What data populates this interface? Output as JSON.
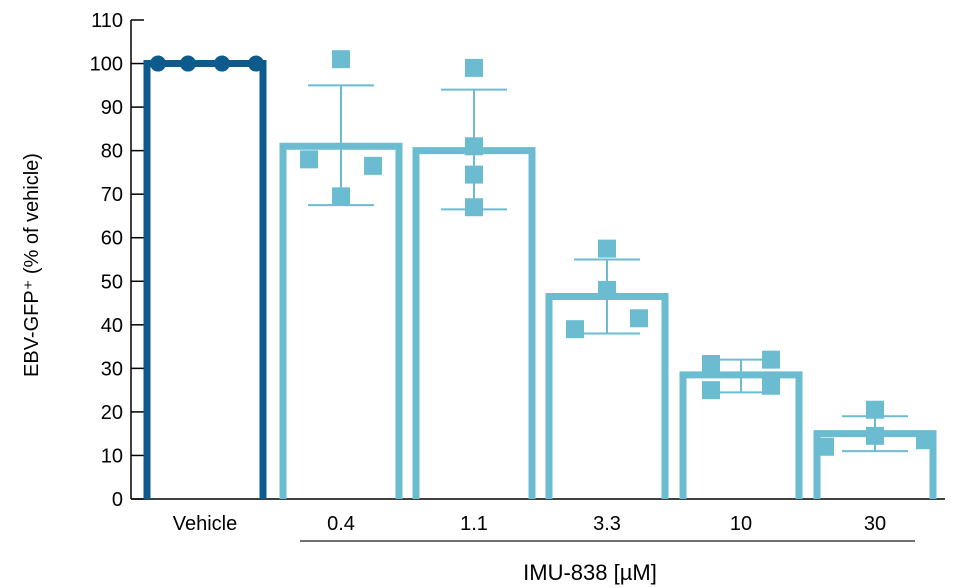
{
  "chart_data": {
    "type": "bar",
    "ylabel": "EBV-GFP⁺ (% of vehicle)",
    "group_label": "IMU-838 [µM]",
    "ylim": [
      0,
      110
    ],
    "yticks": [
      0,
      10,
      20,
      30,
      40,
      50,
      60,
      70,
      80,
      90,
      100,
      110
    ],
    "categories": [
      "Vehicle",
      "0.4",
      "1.1",
      "3.3",
      "10",
      "30"
    ],
    "values": [
      100,
      81,
      80,
      46.5,
      28.5,
      15
    ],
    "error_upper": [
      null,
      95,
      94,
      55,
      32,
      19
    ],
    "error_lower": [
      null,
      67.5,
      66.5,
      38,
      24.5,
      11
    ],
    "points": [
      [
        100,
        100,
        100,
        100
      ],
      [
        101,
        78,
        69.5,
        76.5
      ],
      [
        99,
        81,
        74.5,
        67
      ],
      [
        57.5,
        48,
        39,
        41.5
      ],
      [
        31,
        25,
        32,
        26
      ],
      [
        20.5,
        12,
        14.5,
        13.5
      ]
    ],
    "colors": {
      "vehicle": "#0d5a8c",
      "treatment": "#6bbcd0",
      "axis": "#000000",
      "bracket": "#404040"
    }
  }
}
